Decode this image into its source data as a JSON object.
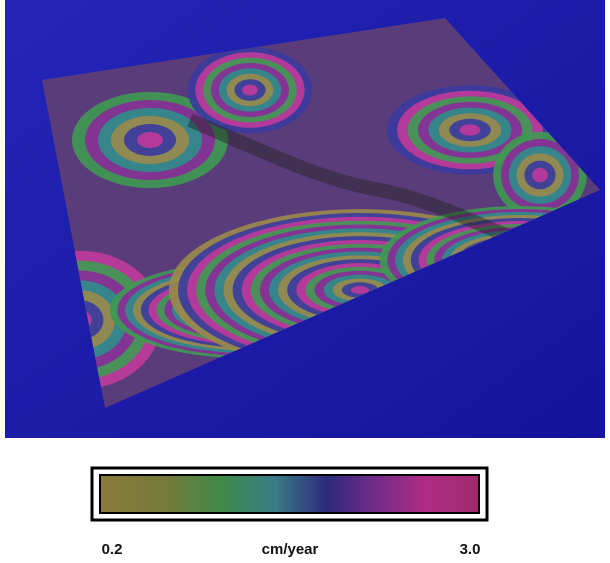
{
  "colorbar": {
    "min_label": "0.2",
    "unit": "cm/year",
    "max_label": "3.0"
  }
}
